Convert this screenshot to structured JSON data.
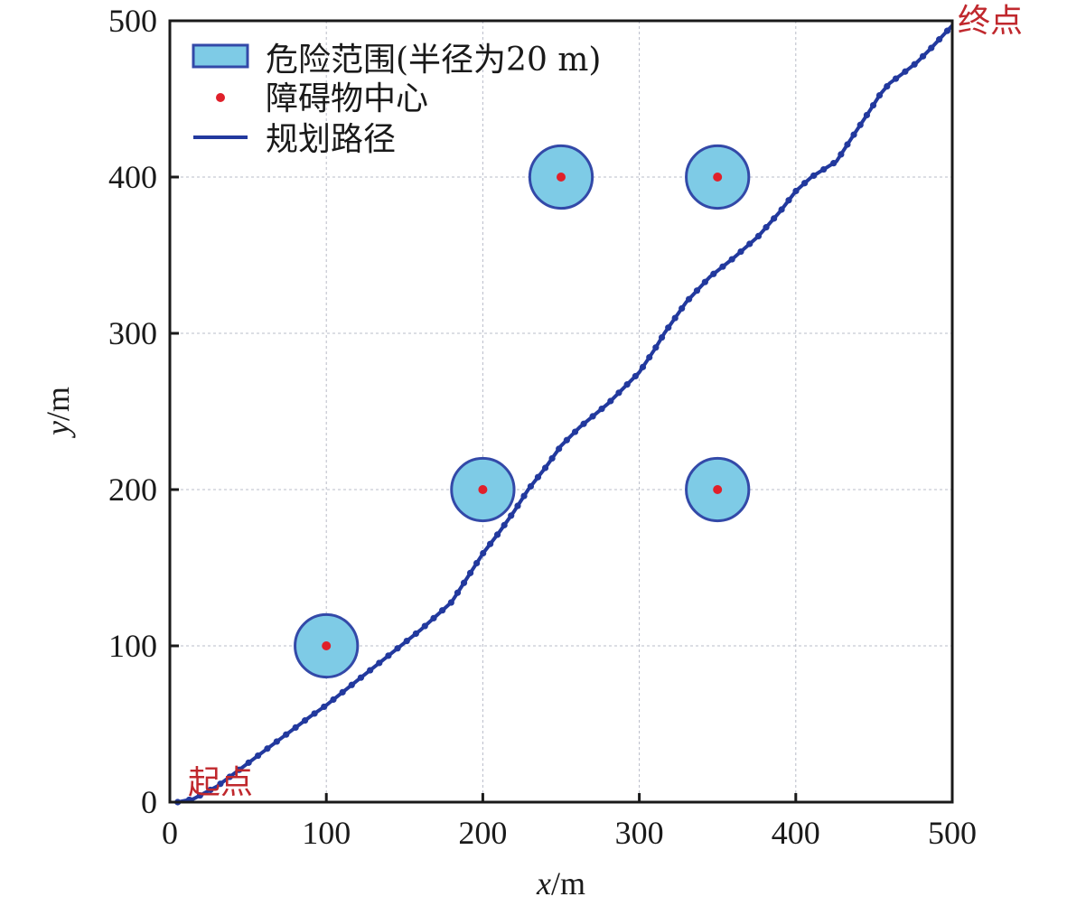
{
  "chart_data": {
    "type": "line",
    "title": "",
    "xlabel": "x/m",
    "ylabel": "y/m",
    "xlim": [
      0,
      500
    ],
    "ylim": [
      0,
      500
    ],
    "xticks": [
      0,
      100,
      200,
      300,
      400,
      500
    ],
    "yticks": [
      0,
      100,
      200,
      300,
      400,
      500
    ],
    "grid": true,
    "legend_position": "upper left",
    "legend": [
      {
        "label": "危险范围(半径为20 m)",
        "kind": "patch",
        "fill": "#7ecbe6",
        "edge": "#3349a8"
      },
      {
        "label": "障碍物中心",
        "kind": "marker",
        "color": "#e0202a"
      },
      {
        "label": "规划路径",
        "kind": "line",
        "color": "#22399e"
      }
    ],
    "obstacles": {
      "radius": 20,
      "centers": [
        {
          "x": 100,
          "y": 100
        },
        {
          "x": 200,
          "y": 200
        },
        {
          "x": 250,
          "y": 400
        },
        {
          "x": 350,
          "y": 400
        },
        {
          "x": 350,
          "y": 200
        }
      ]
    },
    "series": [
      {
        "name": "规划路径",
        "points": [
          [
            5,
            0
          ],
          [
            15,
            2
          ],
          [
            30,
            10
          ],
          [
            50,
            25
          ],
          [
            70,
            40
          ],
          [
            90,
            55
          ],
          [
            100,
            62
          ],
          [
            120,
            78
          ],
          [
            140,
            94
          ],
          [
            160,
            110
          ],
          [
            180,
            128
          ],
          [
            200,
            159
          ],
          [
            210,
            172
          ],
          [
            220,
            186
          ],
          [
            229,
            200
          ],
          [
            240,
            214
          ],
          [
            250,
            228
          ],
          [
            262,
            240
          ],
          [
            280,
            255
          ],
          [
            300,
            275
          ],
          [
            310,
            290
          ],
          [
            316,
            300
          ],
          [
            330,
            320
          ],
          [
            345,
            336
          ],
          [
            360,
            348
          ],
          [
            376,
            362
          ],
          [
            390,
            378
          ],
          [
            400,
            391
          ],
          [
            410,
            400
          ],
          [
            426,
            410
          ],
          [
            437,
            427
          ],
          [
            447,
            442
          ],
          [
            454,
            453
          ],
          [
            460,
            460
          ],
          [
            468,
            466
          ],
          [
            477,
            473
          ],
          [
            487,
            483
          ],
          [
            500,
            497
          ]
        ]
      }
    ],
    "annotations": [
      {
        "text": "起点",
        "x": 10,
        "y": 5
      },
      {
        "text": "终点",
        "x": 500,
        "y": 500
      }
    ]
  },
  "colors": {
    "danger_fill": "#7ecbe6",
    "danger_edge": "#3349a8",
    "center": "#e0202a",
    "path": "#22399e",
    "annotation": "#c0282d",
    "axis": "#1a1a1a",
    "grid": "#b8bcc8"
  }
}
